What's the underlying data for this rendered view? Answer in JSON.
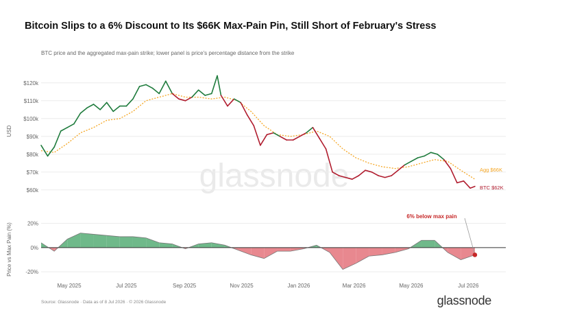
{
  "header": {
    "title": "Bitcoin Slips to a 6% Discount to Its $66K Max-Pain Pin, Still Short of February's Stress",
    "subtitle": "BTC price and the aggregated max-pain strike; lower panel is price's percentage distance from the strike"
  },
  "footer": {
    "source": "Source: Glassnode · Data as of 8 Jul 2026 · © 2026 Glassnode",
    "logo": "glassnode"
  },
  "watermark": "glassnode",
  "colors": {
    "btc_up": "#1e7b3c",
    "btc_down": "#b01c2e",
    "max_pain": "#f5a623",
    "pos_fill": "#6fb98a",
    "neg_fill": "#e8888f",
    "grid": "#ececec",
    "marker": "#c62828"
  },
  "chart_data": [
    {
      "type": "line",
      "ylabel": "USD",
      "ylim": [
        58000,
        128000
      ],
      "yticks": [
        60000,
        70000,
        80000,
        90000,
        100000,
        110000,
        120000
      ],
      "ytick_labels": [
        "$60k",
        "$70k",
        "$80k",
        "$90k",
        "$100k",
        "$110k",
        "$120k"
      ],
      "x_ticks": [
        "2025-05-01",
        "2025-07-01",
        "2025-09-01",
        "2025-11-01",
        "2026-01-01",
        "2026-03-01",
        "2026-05-01",
        "2026-07-01"
      ],
      "x_tick_labels": [
        "May 2025",
        "Jul 2025",
        "Sep 2025",
        "Nov 2025",
        "Jan 2026",
        "Mar 2026",
        "May 2026",
        "Jul 2026"
      ],
      "xlim": [
        "2025-04-01",
        "2026-08-10"
      ],
      "grid": "horizontal",
      "series": [
        {
          "name": "BTC",
          "end_label": "BTC $62K",
          "x": [
            "2025-04-01",
            "2025-04-08",
            "2025-04-15",
            "2025-04-22",
            "2025-04-29",
            "2025-05-06",
            "2025-05-13",
            "2025-05-20",
            "2025-05-27",
            "2025-06-03",
            "2025-06-10",
            "2025-06-17",
            "2025-06-24",
            "2025-07-01",
            "2025-07-08",
            "2025-07-15",
            "2025-07-22",
            "2025-07-29",
            "2025-08-05",
            "2025-08-12",
            "2025-08-19",
            "2025-08-26",
            "2025-09-02",
            "2025-09-09",
            "2025-09-16",
            "2025-09-23",
            "2025-09-30",
            "2025-10-06",
            "2025-10-10",
            "2025-10-17",
            "2025-10-24",
            "2025-10-31",
            "2025-11-07",
            "2025-11-14",
            "2025-11-21",
            "2025-11-28",
            "2025-12-05",
            "2025-12-12",
            "2025-12-19",
            "2025-12-26",
            "2026-01-02",
            "2026-01-09",
            "2026-01-16",
            "2026-01-23",
            "2026-01-30",
            "2026-02-06",
            "2026-02-13",
            "2026-02-20",
            "2026-02-27",
            "2026-03-06",
            "2026-03-13",
            "2026-03-20",
            "2026-03-27",
            "2026-04-03",
            "2026-04-10",
            "2026-04-17",
            "2026-04-24",
            "2026-05-01",
            "2026-05-08",
            "2026-05-15",
            "2026-05-22",
            "2026-05-29",
            "2026-06-05",
            "2026-06-12",
            "2026-06-19",
            "2026-06-26",
            "2026-07-03",
            "2026-07-08"
          ],
          "y": [
            85000,
            79000,
            84000,
            93000,
            95000,
            97000,
            103000,
            106000,
            108000,
            105000,
            109000,
            104000,
            107000,
            107000,
            111000,
            118000,
            119000,
            117000,
            114000,
            121000,
            114000,
            111000,
            110000,
            112000,
            116000,
            113000,
            114000,
            124000,
            113000,
            107000,
            111000,
            109000,
            102000,
            96000,
            85000,
            91000,
            92000,
            90000,
            88000,
            88000,
            90000,
            92000,
            95000,
            89000,
            83000,
            70000,
            68000,
            67000,
            66000,
            68000,
            71000,
            70000,
            68000,
            67000,
            68000,
            71000,
            74000,
            76000,
            78000,
            79000,
            81000,
            80000,
            77000,
            72000,
            64000,
            65000,
            61000,
            62000
          ]
        },
        {
          "name": "Agg Max Pain",
          "end_label": "Agg $66K",
          "x": [
            "2025-04-01",
            "2025-04-15",
            "2025-04-29",
            "2025-05-13",
            "2025-05-27",
            "2025-06-10",
            "2025-06-24",
            "2025-07-08",
            "2025-07-22",
            "2025-08-05",
            "2025-08-19",
            "2025-09-02",
            "2025-09-16",
            "2025-09-30",
            "2025-10-14",
            "2025-10-28",
            "2025-11-11",
            "2025-11-25",
            "2025-12-09",
            "2025-12-23",
            "2026-01-06",
            "2026-01-20",
            "2026-02-03",
            "2026-02-17",
            "2026-03-03",
            "2026-03-17",
            "2026-03-31",
            "2026-04-14",
            "2026-04-28",
            "2026-05-12",
            "2026-05-26",
            "2026-06-09",
            "2026-06-23",
            "2026-07-08"
          ],
          "y": [
            82000,
            81000,
            86000,
            92000,
            95000,
            99000,
            100000,
            104000,
            110000,
            112000,
            114000,
            112000,
            112000,
            111000,
            112000,
            110000,
            104000,
            96000,
            91000,
            90000,
            91000,
            93000,
            90000,
            83000,
            78000,
            75000,
            73000,
            72000,
            73000,
            75000,
            77000,
            76000,
            71000,
            66000
          ]
        }
      ]
    },
    {
      "type": "area",
      "ylabel": "Price vs Max Pain (%)",
      "ylim": [
        -25,
        22
      ],
      "yticks": [
        20,
        0,
        -20
      ],
      "ytick_labels": [
        "20%",
        "0%",
        "-20%"
      ],
      "x": [
        "2025-04-01",
        "2025-04-15",
        "2025-04-29",
        "2025-05-13",
        "2025-05-27",
        "2025-06-10",
        "2025-06-24",
        "2025-07-08",
        "2025-07-22",
        "2025-08-05",
        "2025-08-19",
        "2025-09-02",
        "2025-09-16",
        "2025-09-30",
        "2025-10-14",
        "2025-10-28",
        "2025-11-11",
        "2025-11-25",
        "2025-12-09",
        "2025-12-23",
        "2026-01-06",
        "2026-01-20",
        "2026-02-03",
        "2026-02-17",
        "2026-03-03",
        "2026-03-17",
        "2026-03-31",
        "2026-04-14",
        "2026-04-28",
        "2026-05-12",
        "2026-05-26",
        "2026-06-09",
        "2026-06-23",
        "2026-07-08"
      ],
      "values": [
        4,
        -3,
        7,
        12,
        11,
        10,
        9,
        9,
        8,
        4,
        3,
        -1,
        3,
        4,
        2,
        -2,
        -6,
        -9,
        -3,
        -3,
        -1,
        2,
        -4,
        -18,
        -13,
        -7,
        -6,
        -4,
        -1,
        6,
        6,
        -4,
        -10,
        -6
      ],
      "annotation": {
        "text": "6% below max pain",
        "x": "2026-07-08",
        "y": -6
      }
    }
  ]
}
